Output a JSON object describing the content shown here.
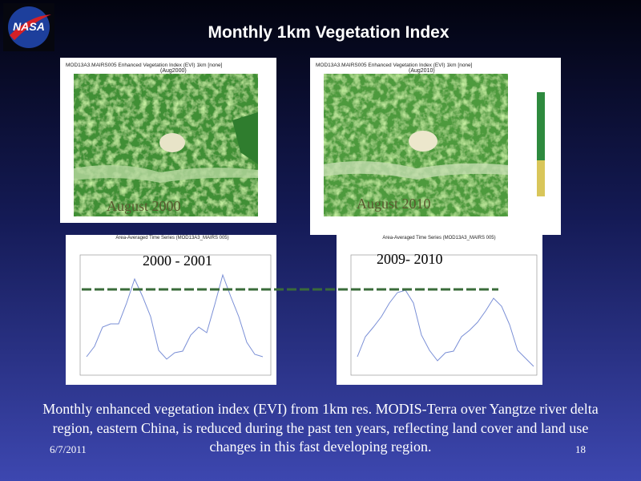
{
  "header": {
    "title": "Monthly 1km Vegetation Index"
  },
  "maps": [
    {
      "product": "MOD13A3.MAIRS005 Enhanced Vegetation Index (EVI) 1km [none]",
      "subtitle": "(Aug2000)",
      "label": "August 2000"
    },
    {
      "product": "MOD13A3.MAIRS005 Enhanced Vegetation Index (EVI) 1km [none]",
      "subtitle": "(Aug2010)",
      "label": "August 2010"
    }
  ],
  "series_panels": [
    {
      "product": "Area-Averaged Time Series (MOD13A3_MAIRS 005)",
      "label": "2000 - 2001"
    },
    {
      "product": "Area-Averaged Time Series (MOD13A3_MAIRS 005)",
      "label": "2009- 2010"
    }
  ],
  "caption": [
    "Monthly enhanced vegetation index (EVI) from 1km res. MODIS-Terra over Yangtze river delta",
    "region, eastern China, is reduced during the past ten years, reflecting land cover and land use",
    "changes  in this fast developing region."
  ],
  "footer": {
    "date": "6/7/2011",
    "page": "18"
  }
}
